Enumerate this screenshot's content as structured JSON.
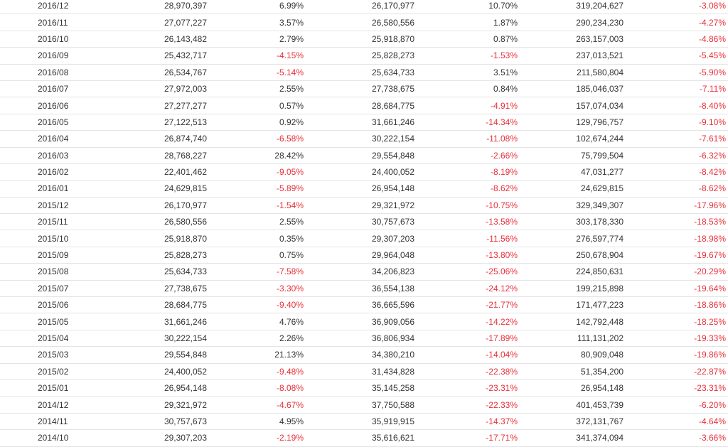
{
  "colors": {
    "negative": "#e8303a",
    "positive": "#333333",
    "row_border": "#e4e4e4"
  },
  "rows": [
    {
      "month": "2016/12",
      "v1": "28,970,397",
      "p1": "6.99%",
      "v2": "26,170,977",
      "p2": "10.70%",
      "v3": "319,204,627",
      "p3": "-3.08%"
    },
    {
      "month": "2016/11",
      "v1": "27,077,227",
      "p1": "3.57%",
      "v2": "26,580,556",
      "p2": "1.87%",
      "v3": "290,234,230",
      "p3": "-4.27%"
    },
    {
      "month": "2016/10",
      "v1": "26,143,482",
      "p1": "2.79%",
      "v2": "25,918,870",
      "p2": "0.87%",
      "v3": "263,157,003",
      "p3": "-4.86%"
    },
    {
      "month": "2016/09",
      "v1": "25,432,717",
      "p1": "-4.15%",
      "v2": "25,828,273",
      "p2": "-1.53%",
      "v3": "237,013,521",
      "p3": "-5.45%"
    },
    {
      "month": "2016/08",
      "v1": "26,534,767",
      "p1": "-5.14%",
      "v2": "25,634,733",
      "p2": "3.51%",
      "v3": "211,580,804",
      "p3": "-5.90%"
    },
    {
      "month": "2016/07",
      "v1": "27,972,003",
      "p1": "2.55%",
      "v2": "27,738,675",
      "p2": "0.84%",
      "v3": "185,046,037",
      "p3": "-7.11%"
    },
    {
      "month": "2016/06",
      "v1": "27,277,277",
      "p1": "0.57%",
      "v2": "28,684,775",
      "p2": "-4.91%",
      "v3": "157,074,034",
      "p3": "-8.40%"
    },
    {
      "month": "2016/05",
      "v1": "27,122,513",
      "p1": "0.92%",
      "v2": "31,661,246",
      "p2": "-14.34%",
      "v3": "129,796,757",
      "p3": "-9.10%"
    },
    {
      "month": "2016/04",
      "v1": "26,874,740",
      "p1": "-6.58%",
      "v2": "30,222,154",
      "p2": "-11.08%",
      "v3": "102,674,244",
      "p3": "-7.61%"
    },
    {
      "month": "2016/03",
      "v1": "28,768,227",
      "p1": "28.42%",
      "v2": "29,554,848",
      "p2": "-2.66%",
      "v3": "75,799,504",
      "p3": "-6.32%"
    },
    {
      "month": "2016/02",
      "v1": "22,401,462",
      "p1": "-9.05%",
      "v2": "24,400,052",
      "p2": "-8.19%",
      "v3": "47,031,277",
      "p3": "-8.42%"
    },
    {
      "month": "2016/01",
      "v1": "24,629,815",
      "p1": "-5.89%",
      "v2": "26,954,148",
      "p2": "-8.62%",
      "v3": "24,629,815",
      "p3": "-8.62%"
    },
    {
      "month": "2015/12",
      "v1": "26,170,977",
      "p1": "-1.54%",
      "v2": "29,321,972",
      "p2": "-10.75%",
      "v3": "329,349,307",
      "p3": "-17.96%"
    },
    {
      "month": "2015/11",
      "v1": "26,580,556",
      "p1": "2.55%",
      "v2": "30,757,673",
      "p2": "-13.58%",
      "v3": "303,178,330",
      "p3": "-18.53%"
    },
    {
      "month": "2015/10",
      "v1": "25,918,870",
      "p1": "0.35%",
      "v2": "29,307,203",
      "p2": "-11.56%",
      "v3": "276,597,774",
      "p3": "-18.98%"
    },
    {
      "month": "2015/09",
      "v1": "25,828,273",
      "p1": "0.75%",
      "v2": "29,964,048",
      "p2": "-13.80%",
      "v3": "250,678,904",
      "p3": "-19.67%"
    },
    {
      "month": "2015/08",
      "v1": "25,634,733",
      "p1": "-7.58%",
      "v2": "34,206,823",
      "p2": "-25.06%",
      "v3": "224,850,631",
      "p3": "-20.29%"
    },
    {
      "month": "2015/07",
      "v1": "27,738,675",
      "p1": "-3.30%",
      "v2": "36,554,138",
      "p2": "-24.12%",
      "v3": "199,215,898",
      "p3": "-19.64%"
    },
    {
      "month": "2015/06",
      "v1": "28,684,775",
      "p1": "-9.40%",
      "v2": "36,665,596",
      "p2": "-21.77%",
      "v3": "171,477,223",
      "p3": "-18.86%"
    },
    {
      "month": "2015/05",
      "v1": "31,661,246",
      "p1": "4.76%",
      "v2": "36,909,056",
      "p2": "-14.22%",
      "v3": "142,792,448",
      "p3": "-18.25%"
    },
    {
      "month": "2015/04",
      "v1": "30,222,154",
      "p1": "2.26%",
      "v2": "36,806,934",
      "p2": "-17.89%",
      "v3": "111,131,202",
      "p3": "-19.33%"
    },
    {
      "month": "2015/03",
      "v1": "29,554,848",
      "p1": "21.13%",
      "v2": "34,380,210",
      "p2": "-14.04%",
      "v3": "80,909,048",
      "p3": "-19.86%"
    },
    {
      "month": "2015/02",
      "v1": "24,400,052",
      "p1": "-9.48%",
      "v2": "31,434,828",
      "p2": "-22.38%",
      "v3": "51,354,200",
      "p3": "-22.87%"
    },
    {
      "month": "2015/01",
      "v1": "26,954,148",
      "p1": "-8.08%",
      "v2": "35,145,258",
      "p2": "-23.31%",
      "v3": "26,954,148",
      "p3": "-23.31%"
    },
    {
      "month": "2014/12",
      "v1": "29,321,972",
      "p1": "-4.67%",
      "v2": "37,750,588",
      "p2": "-22.33%",
      "v3": "401,453,739",
      "p3": "-6.20%"
    },
    {
      "month": "2014/11",
      "v1": "30,757,673",
      "p1": "4.95%",
      "v2": "35,919,915",
      "p2": "-14.37%",
      "v3": "372,131,767",
      "p3": "-4.64%"
    },
    {
      "month": "2014/10",
      "v1": "29,307,203",
      "p1": "-2.19%",
      "v2": "35,616,621",
      "p2": "-17.71%",
      "v3": "341,374,094",
      "p3": "-3.66%"
    }
  ]
}
